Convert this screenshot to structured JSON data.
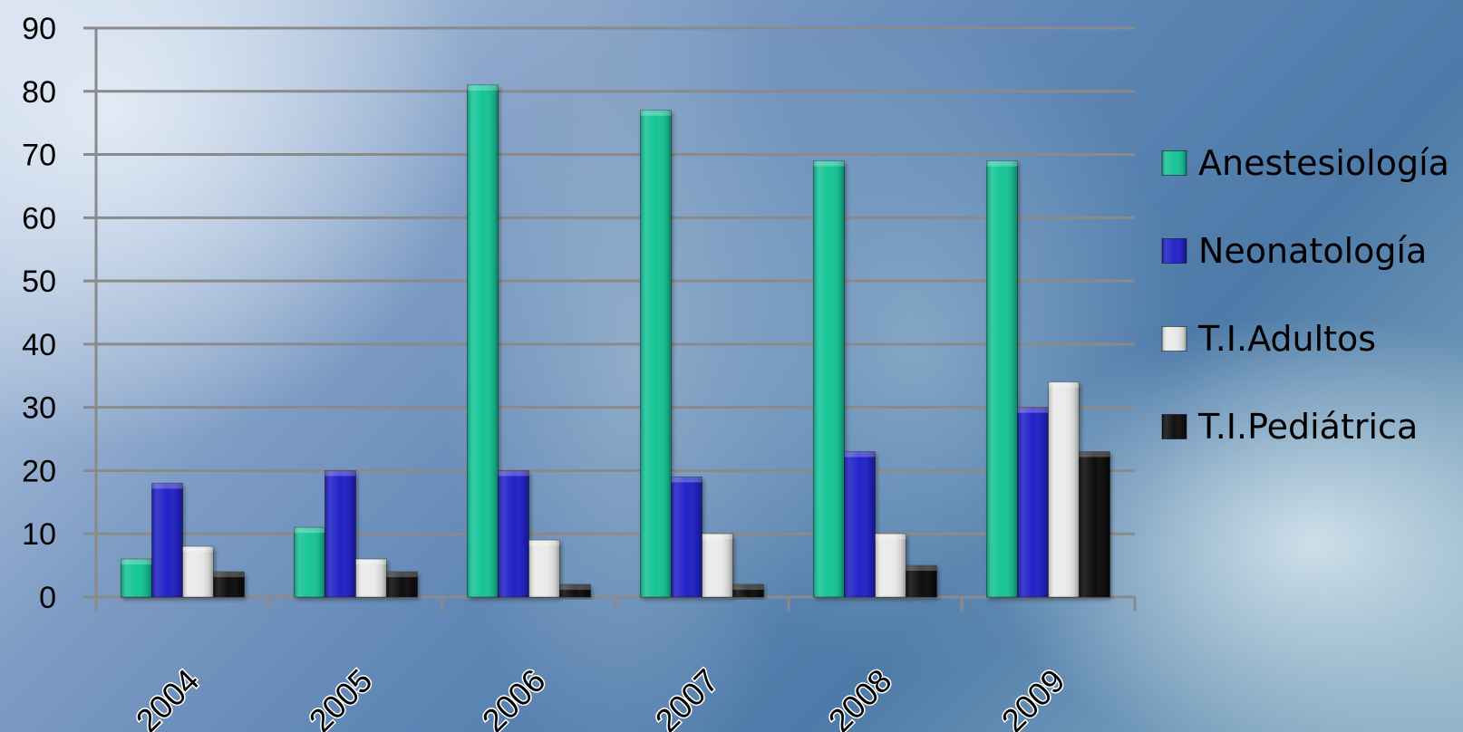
{
  "chart_data": {
    "type": "bar",
    "title": "",
    "xlabel": "",
    "ylabel": "",
    "categories": [
      "2004",
      "2005",
      "2006",
      "2007",
      "2008",
      "2009"
    ],
    "ylim": [
      0,
      90
    ],
    "yticks": [
      0,
      10,
      20,
      30,
      40,
      50,
      60,
      70,
      80,
      90
    ],
    "grid": true,
    "legend_position": "right",
    "series": [
      {
        "name": "Anestesiología",
        "color": "#19c597",
        "values": [
          6,
          11,
          81,
          77,
          69,
          69
        ]
      },
      {
        "name": "Neonatología",
        "color": "#2424c8",
        "values": [
          18,
          20,
          20,
          19,
          23,
          30
        ]
      },
      {
        "name": "T.I.Adultos",
        "color": "#eaeaea",
        "values": [
          8,
          6,
          9,
          10,
          10,
          34
        ]
      },
      {
        "name": "T.I.Pediátrica",
        "color": "#111111",
        "values": [
          4,
          4,
          2,
          2,
          5,
          23
        ]
      }
    ]
  }
}
